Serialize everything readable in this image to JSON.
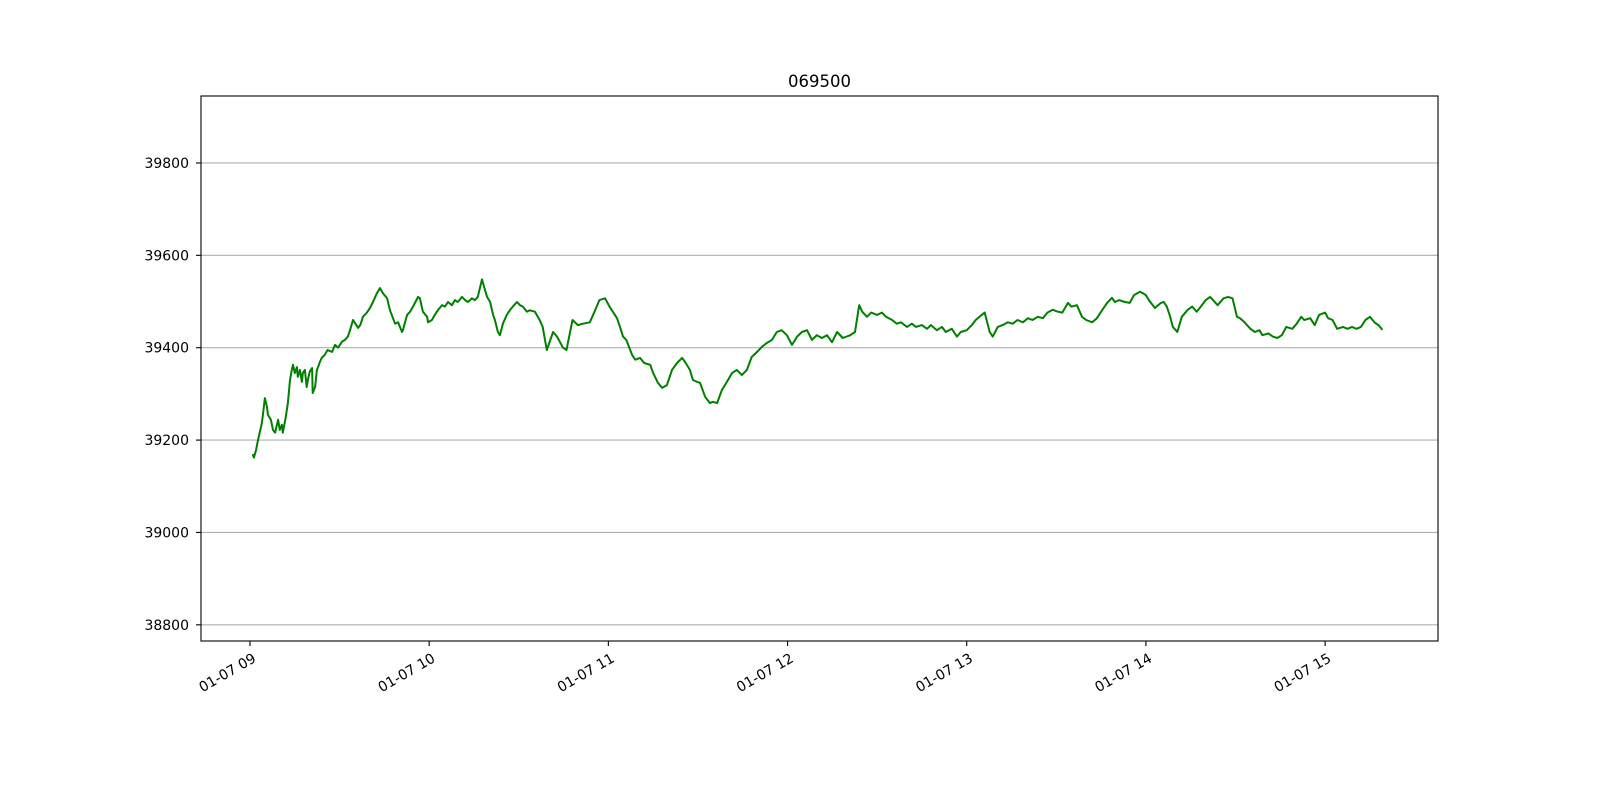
{
  "chart_data": {
    "type": "line",
    "title": "069500",
    "xlabel": "",
    "ylabel": "",
    "x_unit": "minutes since 09:00 on 01-07",
    "xlim_minutes": [
      -16.4,
      397.8
    ],
    "ylim": [
      38765,
      39945
    ],
    "grid": "horizontal",
    "legend": "none",
    "line_color": "#008000",
    "grid_color": "#b0b0b0",
    "axis_color": "#000000",
    "tick_label_rotation_deg": 30,
    "yticks": [
      {
        "value": 38800,
        "label": "38800"
      },
      {
        "value": 39000,
        "label": "39000"
      },
      {
        "value": 39200,
        "label": "39200"
      },
      {
        "value": 39400,
        "label": "39400"
      },
      {
        "value": 39600,
        "label": "39600"
      },
      {
        "value": 39800,
        "label": "39800"
      }
    ],
    "xticks": [
      {
        "minute": 0,
        "label": "01-07 09"
      },
      {
        "minute": 60,
        "label": "01-07 10"
      },
      {
        "minute": 120,
        "label": "01-07 11"
      },
      {
        "minute": 180,
        "label": "01-07 12"
      },
      {
        "minute": 240,
        "label": "01-07 13"
      },
      {
        "minute": 300,
        "label": "01-07 14"
      },
      {
        "minute": 360,
        "label": "01-07 15"
      }
    ],
    "series": [
      {
        "name": "069500",
        "color": "#008000",
        "points": [
          [
            1,
            39168
          ],
          [
            1.3,
            39162
          ],
          [
            2,
            39178
          ],
          [
            2.7,
            39200
          ],
          [
            4,
            39237
          ],
          [
            5,
            39291
          ],
          [
            5.7,
            39272
          ],
          [
            6,
            39255
          ],
          [
            7,
            39244
          ],
          [
            7.7,
            39222
          ],
          [
            8.4,
            39216
          ],
          [
            9,
            39233
          ],
          [
            9.4,
            39244
          ],
          [
            10,
            39222
          ],
          [
            10.7,
            39233
          ],
          [
            11,
            39216
          ],
          [
            12,
            39250
          ],
          [
            12.7,
            39281
          ],
          [
            13.4,
            39330
          ],
          [
            14,
            39352
          ],
          [
            14.4,
            39363
          ],
          [
            15,
            39345
          ],
          [
            15.7,
            39358
          ],
          [
            16,
            39337
          ],
          [
            16.7,
            39352
          ],
          [
            17.4,
            39326
          ],
          [
            17.7,
            39345
          ],
          [
            18.4,
            39352
          ],
          [
            19,
            39315
          ],
          [
            19.4,
            39330
          ],
          [
            20,
            39348
          ],
          [
            20.8,
            39356
          ],
          [
            21,
            39302
          ],
          [
            21.8,
            39315
          ],
          [
            22.4,
            39352
          ],
          [
            22.8,
            39358
          ],
          [
            23.4,
            39369
          ],
          [
            24,
            39378
          ],
          [
            25,
            39384
          ],
          [
            26,
            39395
          ],
          [
            27.5,
            39391
          ],
          [
            28.5,
            39406
          ],
          [
            29.5,
            39400
          ],
          [
            30.8,
            39413
          ],
          [
            31.8,
            39417
          ],
          [
            32.8,
            39424
          ],
          [
            33.5,
            39438
          ],
          [
            34.5,
            39460
          ],
          [
            35.5,
            39450
          ],
          [
            36.2,
            39443
          ],
          [
            37,
            39450
          ],
          [
            37.8,
            39467
          ],
          [
            39,
            39475
          ],
          [
            40.2,
            39486
          ],
          [
            41.2,
            39499
          ],
          [
            42.5,
            39518
          ],
          [
            43.5,
            39529
          ],
          [
            44.5,
            39518
          ],
          [
            45.9,
            39507
          ],
          [
            46.9,
            39481
          ],
          [
            47.9,
            39464
          ],
          [
            48.6,
            39452
          ],
          [
            49.6,
            39455
          ],
          [
            50.2,
            39445
          ],
          [
            50.9,
            39434
          ],
          [
            51.2,
            39438
          ],
          [
            52.6,
            39471
          ],
          [
            53.6,
            39478
          ],
          [
            54.6,
            39489
          ],
          [
            56.3,
            39510
          ],
          [
            56.9,
            39507
          ],
          [
            57.9,
            39478
          ],
          [
            59.3,
            39467
          ],
          [
            59.6,
            39455
          ],
          [
            60.9,
            39460
          ],
          [
            61.9,
            39471
          ],
          [
            62.9,
            39481
          ],
          [
            64.3,
            39492
          ],
          [
            65.3,
            39489
          ],
          [
            66.3,
            39499
          ],
          [
            67.6,
            39492
          ],
          [
            68.6,
            39503
          ],
          [
            69.6,
            39499
          ],
          [
            71,
            39510
          ],
          [
            72,
            39503
          ],
          [
            73,
            39499
          ],
          [
            74.3,
            39507
          ],
          [
            75.3,
            39503
          ],
          [
            76.3,
            39510
          ],
          [
            77.7,
            39548
          ],
          [
            78.7,
            39525
          ],
          [
            79.4,
            39510
          ],
          [
            80.4,
            39499
          ],
          [
            81.4,
            39471
          ],
          [
            82,
            39460
          ],
          [
            83,
            39434
          ],
          [
            83.7,
            39427
          ],
          [
            84.7,
            39452
          ],
          [
            86,
            39471
          ],
          [
            87,
            39481
          ],
          [
            88,
            39489
          ],
          [
            89.4,
            39499
          ],
          [
            90.4,
            39492
          ],
          [
            91.4,
            39489
          ],
          [
            92.7,
            39478
          ],
          [
            93.7,
            39481
          ],
          [
            95.4,
            39478
          ],
          [
            97,
            39460
          ],
          [
            98,
            39445
          ],
          [
            99.4,
            39395
          ],
          [
            101.5,
            39434
          ],
          [
            102.8,
            39424
          ],
          [
            104.8,
            39400
          ],
          [
            106,
            39395
          ],
          [
            108,
            39460
          ],
          [
            109.8,
            39449
          ],
          [
            111.5,
            39452
          ],
          [
            113.8,
            39455
          ],
          [
            115.5,
            39480
          ],
          [
            117,
            39503
          ],
          [
            118.9,
            39507
          ],
          [
            120.5,
            39488
          ],
          [
            122.9,
            39464
          ],
          [
            123.9,
            39445
          ],
          [
            124.9,
            39424
          ],
          [
            126,
            39417
          ],
          [
            128,
            39384
          ],
          [
            129,
            39374
          ],
          [
            130.6,
            39378
          ],
          [
            132,
            39367
          ],
          [
            134,
            39363
          ],
          [
            135,
            39345
          ],
          [
            136.6,
            39324
          ],
          [
            138,
            39313
          ],
          [
            139.6,
            39319
          ],
          [
            141.3,
            39352
          ],
          [
            143,
            39367
          ],
          [
            144.7,
            39378
          ],
          [
            145.7,
            39369
          ],
          [
            147.3,
            39352
          ],
          [
            148.3,
            39330
          ],
          [
            149.7,
            39326
          ],
          [
            150.7,
            39324
          ],
          [
            152.4,
            39294
          ],
          [
            154,
            39280
          ],
          [
            155,
            39283
          ],
          [
            156.4,
            39280
          ],
          [
            158,
            39308
          ],
          [
            159.7,
            39326
          ],
          [
            161.4,
            39345
          ],
          [
            163,
            39352
          ],
          [
            164.7,
            39341
          ],
          [
            166.4,
            39352
          ],
          [
            168,
            39380
          ],
          [
            169.8,
            39391
          ],
          [
            171.4,
            39402
          ],
          [
            173,
            39410
          ],
          [
            174.8,
            39417
          ],
          [
            176.4,
            39434
          ],
          [
            178,
            39438
          ],
          [
            179.8,
            39427
          ],
          [
            181.5,
            39406
          ],
          [
            183.2,
            39424
          ],
          [
            184.8,
            39434
          ],
          [
            186.5,
            39438
          ],
          [
            188.2,
            39417
          ],
          [
            189.8,
            39427
          ],
          [
            191.5,
            39421
          ],
          [
            193.2,
            39427
          ],
          [
            194.9,
            39412
          ],
          [
            196.6,
            39434
          ],
          [
            198.5,
            39421
          ],
          [
            201,
            39427
          ],
          [
            202.6,
            39434
          ],
          [
            204,
            39492
          ],
          [
            205,
            39478
          ],
          [
            206.6,
            39467
          ],
          [
            208,
            39476
          ],
          [
            210,
            39471
          ],
          [
            211.6,
            39476
          ],
          [
            213,
            39467
          ],
          [
            215,
            39460
          ],
          [
            216.6,
            39452
          ],
          [
            218,
            39455
          ],
          [
            220,
            39445
          ],
          [
            221.6,
            39452
          ],
          [
            223,
            39445
          ],
          [
            225,
            39449
          ],
          [
            226.7,
            39441
          ],
          [
            228,
            39449
          ],
          [
            230,
            39438
          ],
          [
            231.7,
            39445
          ],
          [
            233,
            39434
          ],
          [
            235,
            39441
          ],
          [
            236.7,
            39424
          ],
          [
            238,
            39434
          ],
          [
            240,
            39438
          ],
          [
            241.7,
            39449
          ],
          [
            243,
            39460
          ],
          [
            245,
            39471
          ],
          [
            246,
            39476
          ],
          [
            247.7,
            39434
          ],
          [
            248.7,
            39424
          ],
          [
            250.4,
            39445
          ],
          [
            252,
            39449
          ],
          [
            253.8,
            39455
          ],
          [
            255.4,
            39452
          ],
          [
            257,
            39460
          ],
          [
            258.8,
            39455
          ],
          [
            260.5,
            39464
          ],
          [
            262,
            39460
          ],
          [
            263.8,
            39467
          ],
          [
            265.5,
            39464
          ],
          [
            267,
            39476
          ],
          [
            268.8,
            39482
          ],
          [
            270.5,
            39478
          ],
          [
            272,
            39476
          ],
          [
            273.9,
            39497
          ],
          [
            275,
            39489
          ],
          [
            276.9,
            39492
          ],
          [
            278.6,
            39467
          ],
          [
            280,
            39460
          ],
          [
            282,
            39455
          ],
          [
            283.6,
            39464
          ],
          [
            285,
            39478
          ],
          [
            287,
            39497
          ],
          [
            288.6,
            39508
          ],
          [
            289.6,
            39499
          ],
          [
            291,
            39503
          ],
          [
            293,
            39499
          ],
          [
            294.6,
            39497
          ],
          [
            296,
            39514
          ],
          [
            298,
            39521
          ],
          [
            299,
            39518
          ],
          [
            300,
            39514
          ],
          [
            301,
            39503
          ],
          [
            303,
            39486
          ],
          [
            305,
            39497
          ],
          [
            306,
            39499
          ],
          [
            307,
            39489
          ],
          [
            308,
            39470
          ],
          [
            309,
            39445
          ],
          [
            310,
            39438
          ],
          [
            310.5,
            39434
          ],
          [
            312,
            39467
          ],
          [
            314,
            39482
          ],
          [
            315.5,
            39489
          ],
          [
            317,
            39478
          ],
          [
            318,
            39486
          ],
          [
            320,
            39503
          ],
          [
            321.5,
            39510
          ],
          [
            322.5,
            39503
          ],
          [
            324,
            39492
          ],
          [
            326,
            39507
          ],
          [
            327.5,
            39510
          ],
          [
            329,
            39507
          ],
          [
            330.5,
            39467
          ],
          [
            331.5,
            39464
          ],
          [
            333,
            39455
          ],
          [
            335,
            39441
          ],
          [
            336.5,
            39434
          ],
          [
            338,
            39438
          ],
          [
            339,
            39427
          ],
          [
            341,
            39431
          ],
          [
            342.5,
            39424
          ],
          [
            344,
            39421
          ],
          [
            345.5,
            39427
          ],
          [
            347,
            39445
          ],
          [
            349,
            39441
          ],
          [
            350.5,
            39452
          ],
          [
            352,
            39467
          ],
          [
            353,
            39460
          ],
          [
            355,
            39464
          ],
          [
            356.5,
            39449
          ],
          [
            358,
            39471
          ],
          [
            360,
            39476
          ],
          [
            361,
            39464
          ],
          [
            362.5,
            39460
          ],
          [
            364,
            39441
          ],
          [
            366,
            39445
          ],
          [
            367.5,
            39441
          ],
          [
            369,
            39445
          ],
          [
            370.5,
            39441
          ],
          [
            372,
            39445
          ],
          [
            373.5,
            39460
          ],
          [
            375,
            39467
          ],
          [
            376.5,
            39455
          ],
          [
            378,
            39448
          ],
          [
            379,
            39440
          ]
        ]
      }
    ]
  }
}
